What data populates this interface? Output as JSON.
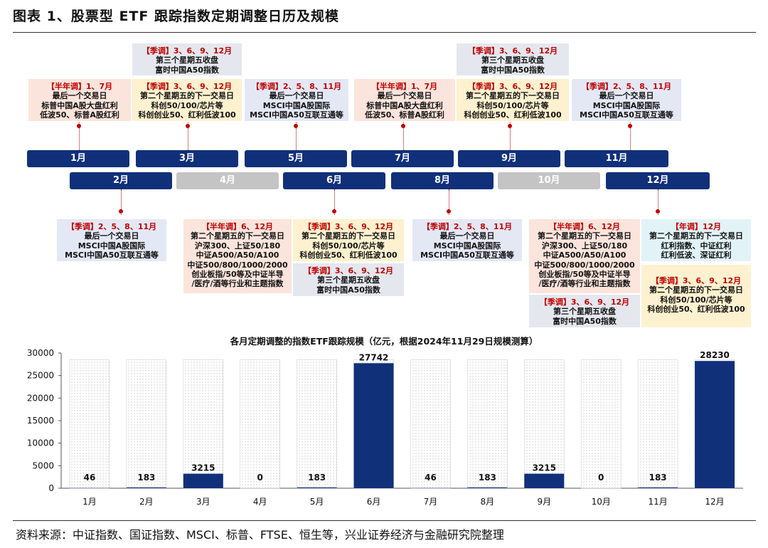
{
  "title": "图表 1、股票型 ETF 跟踪指数定期调整日历及规模",
  "source": "资料来源：中证指数、国证指数、MSCI、标普、FTSE、恒生等，兴业证券经济与金融研究院整理",
  "months": [
    "1月",
    "2月",
    "3月",
    "4月",
    "5月",
    "6月",
    "7月",
    "8月",
    "9月",
    "10月",
    "11月",
    "12月"
  ],
  "colors": {
    "navy": "#11307a",
    "gray_month": "#c4c4c4",
    "accent_red": "#c00000"
  },
  "timeline_boxes": {
    "b1": {
      "head": "【半年调】1、7月",
      "lines": [
        "最后一个交易日",
        "标普中国A股大盘红利",
        "低波50、标普A股红利"
      ]
    },
    "b2": {
      "head": "【季调】2、5、8、11月",
      "lines": [
        "最后一个交易日",
        "MSCI中国A股国际",
        "MSCI中国A50互联互通等"
      ]
    },
    "b3a": {
      "head": "【季调】3、6、9、12月",
      "lines": [
        "第三个星期五收盘",
        "富时中国A50指数"
      ]
    },
    "b3b": {
      "head": "【季调】3、6、9、12月",
      "lines": [
        "第二个星期五的下一交易日",
        "科创50/100/芯片等",
        "科创创业50、红利低波100"
      ]
    },
    "b5": {
      "head": "【季调】2、5、8、11月",
      "lines": [
        "最后一个交易日",
        "MSCI中国A股国际",
        "MSCI中国A50互联互通等"
      ]
    },
    "b6a": {
      "head": "【半年调】6、12月",
      "lines": [
        "第二个星期五的下一交易日",
        "沪深300、上证50/180",
        "中证A500/A50/A100",
        "中证500/800/1000/2000",
        "创业板指/50等及中证半导",
        "/医疗/酒等行业和主题指数"
      ]
    },
    "b6b": {
      "head": "【季调】3、6、9、12月",
      "lines": [
        "第二个星期五的下一交易日",
        "科创50/100/芯片等",
        "科创创业50、红利低波100"
      ]
    },
    "b6c": {
      "head": "【季调】3、6、9、12月",
      "lines": [
        "第三个星期五收盘",
        "富时中国A50指数"
      ]
    },
    "b7": {
      "head": "【半年调】1、7月",
      "lines": [
        "最后一个交易日",
        "标普中国A股大盘红利",
        "低波50、标普A股红利"
      ]
    },
    "b8": {
      "head": "【季调】2、5、8、11月",
      "lines": [
        "最后一个交易日",
        "MSCI中国A股国际",
        "MSCI中国A50互联互通等"
      ]
    },
    "b9a": {
      "head": "【季调】3、6、9、12月",
      "lines": [
        "第三个星期五收盘",
        "富时中国A50指数"
      ]
    },
    "b9b": {
      "head": "【季调】3、6、9、12月",
      "lines": [
        "第二个星期五的下一交易日",
        "科创50/100/芯片等",
        "科创创业50、红利低波100"
      ]
    },
    "b11": {
      "head": "【季调】2、5、8、11月",
      "lines": [
        "最后一个交易日",
        "MSCI中国A股国际",
        "MSCI中国A50互联互通等"
      ]
    },
    "b12a": {
      "head": "【半年调】6、12月",
      "lines": [
        "第二个星期五的下一交易日",
        "沪深300、上证50/180",
        "中证A500/A50/A100",
        "中证500/800/1000/2000",
        "创业板指/50等及中证半导",
        "/医疗/酒等行业和主题指数"
      ]
    },
    "b12b": {
      "head": "【季调】3、6、9、12月",
      "lines": [
        "第三个星期五收盘",
        "富时中国A50指数"
      ]
    },
    "b12c": {
      "head": "【年调】12月",
      "lines": [
        "第二个星期五的下一交易日",
        "红利指数、中证红利",
        "红利低波、深证红利"
      ]
    },
    "b12d": {
      "head": "【季调】3、6、9、12月",
      "lines": [
        "第二个星期五的下一交易日",
        "科创50/100/芯片等",
        "科创创业50、红利低波100"
      ]
    }
  },
  "chart_data": {
    "type": "bar",
    "title": "各月定期调整的指数ETF跟踪规模（亿元，根据2024年11月29日规模测算）",
    "categories": [
      "1月",
      "2月",
      "3月",
      "4月",
      "5月",
      "6月",
      "7月",
      "8月",
      "9月",
      "10月",
      "11月",
      "12月"
    ],
    "values": [
      46,
      183,
      3215,
      0,
      183,
      27742,
      46,
      183,
      3215,
      0,
      183,
      28230
    ],
    "background_total": 28500,
    "ylim": [
      0,
      30000
    ],
    "yticks": [
      0,
      5000,
      10000,
      15000,
      20000,
      25000,
      30000
    ],
    "xlabel": "",
    "ylabel": "",
    "grid": false,
    "legend": "none",
    "bar_color": "#11307a"
  }
}
